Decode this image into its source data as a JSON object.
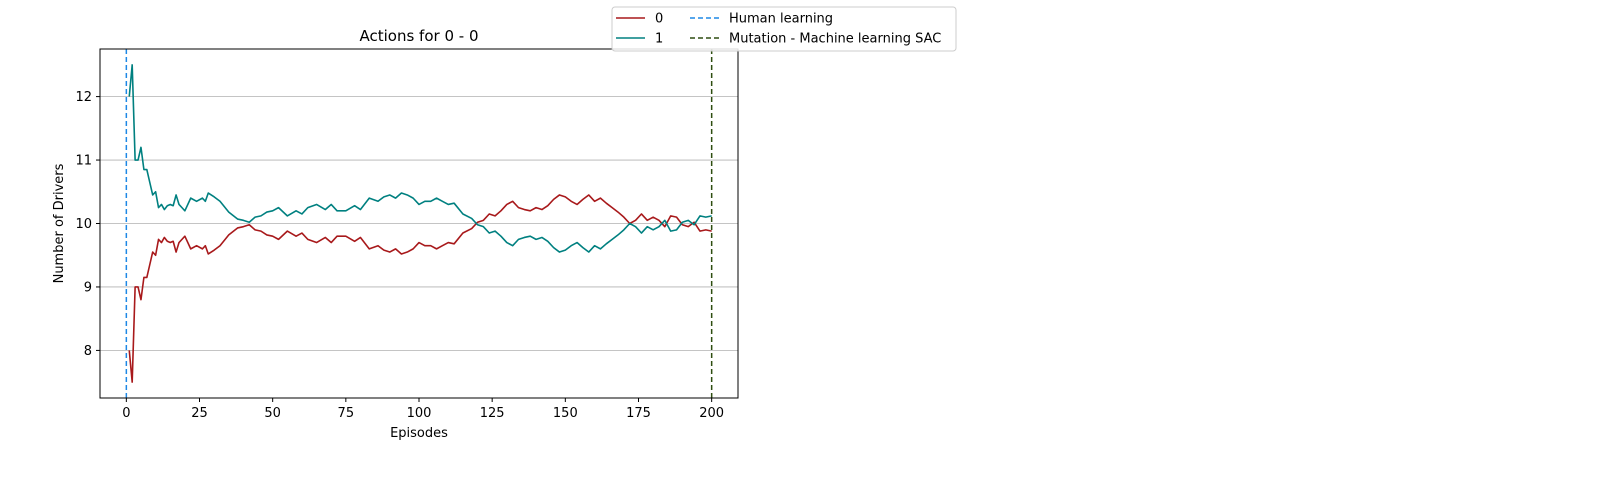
{
  "chart_data": {
    "type": "line",
    "title": "Actions for 0 - 0",
    "xlabel": "Episodes",
    "ylabel": "Number of Drivers",
    "xlim": [
      -9,
      209
    ],
    "ylim": [
      7.25,
      12.75
    ],
    "xticks": [
      0,
      25,
      50,
      75,
      100,
      125,
      150,
      175,
      200
    ],
    "yticks": [
      8,
      9,
      10,
      11,
      12
    ],
    "grid": "y-major",
    "legend_position": "top-right-outside",
    "series": [
      {
        "name": "0",
        "color": "#a8191b",
        "points": [
          [
            1,
            8.0
          ],
          [
            2,
            7.5
          ],
          [
            3,
            9.0
          ],
          [
            4,
            9.0
          ],
          [
            5,
            8.8
          ],
          [
            6,
            9.15
          ],
          [
            7,
            9.15
          ],
          [
            8,
            9.35
          ],
          [
            9,
            9.55
          ],
          [
            10,
            9.5
          ],
          [
            11,
            9.75
          ],
          [
            12,
            9.7
          ],
          [
            13,
            9.78
          ],
          [
            14,
            9.72
          ],
          [
            15,
            9.7
          ],
          [
            16,
            9.72
          ],
          [
            17,
            9.55
          ],
          [
            18,
            9.7
          ],
          [
            19,
            9.75
          ],
          [
            20,
            9.8
          ],
          [
            22,
            9.6
          ],
          [
            24,
            9.65
          ],
          [
            26,
            9.6
          ],
          [
            27,
            9.65
          ],
          [
            28,
            9.52
          ],
          [
            30,
            9.58
          ],
          [
            32,
            9.65
          ],
          [
            35,
            9.82
          ],
          [
            38,
            9.93
          ],
          [
            40,
            9.95
          ],
          [
            42,
            9.98
          ],
          [
            44,
            9.9
          ],
          [
            46,
            9.88
          ],
          [
            48,
            9.82
          ],
          [
            50,
            9.8
          ],
          [
            52,
            9.75
          ],
          [
            55,
            9.88
          ],
          [
            58,
            9.8
          ],
          [
            60,
            9.85
          ],
          [
            62,
            9.75
          ],
          [
            65,
            9.7
          ],
          [
            68,
            9.78
          ],
          [
            70,
            9.7
          ],
          [
            72,
            9.8
          ],
          [
            75,
            9.8
          ],
          [
            78,
            9.72
          ],
          [
            80,
            9.78
          ],
          [
            83,
            9.6
          ],
          [
            86,
            9.65
          ],
          [
            88,
            9.58
          ],
          [
            90,
            9.55
          ],
          [
            92,
            9.6
          ],
          [
            94,
            9.52
          ],
          [
            96,
            9.55
          ],
          [
            98,
            9.6
          ],
          [
            100,
            9.7
          ],
          [
            102,
            9.65
          ],
          [
            104,
            9.65
          ],
          [
            106,
            9.6
          ],
          [
            108,
            9.65
          ],
          [
            110,
            9.7
          ],
          [
            112,
            9.68
          ],
          [
            115,
            9.85
          ],
          [
            118,
            9.92
          ],
          [
            120,
            10.02
          ],
          [
            122,
            10.05
          ],
          [
            124,
            10.15
          ],
          [
            126,
            10.12
          ],
          [
            128,
            10.2
          ],
          [
            130,
            10.3
          ],
          [
            132,
            10.35
          ],
          [
            134,
            10.25
          ],
          [
            136,
            10.22
          ],
          [
            138,
            10.2
          ],
          [
            140,
            10.25
          ],
          [
            142,
            10.22
          ],
          [
            144,
            10.28
          ],
          [
            146,
            10.38
          ],
          [
            148,
            10.45
          ],
          [
            150,
            10.42
          ],
          [
            152,
            10.35
          ],
          [
            154,
            10.3
          ],
          [
            156,
            10.38
          ],
          [
            158,
            10.45
          ],
          [
            160,
            10.35
          ],
          [
            162,
            10.4
          ],
          [
            164,
            10.32
          ],
          [
            166,
            10.25
          ],
          [
            168,
            10.18
          ],
          [
            170,
            10.1
          ],
          [
            172,
            10.0
          ],
          [
            174,
            10.05
          ],
          [
            176,
            10.15
          ],
          [
            178,
            10.05
          ],
          [
            180,
            10.1
          ],
          [
            182,
            10.05
          ],
          [
            184,
            9.95
          ],
          [
            186,
            10.12
          ],
          [
            188,
            10.1
          ],
          [
            190,
            9.98
          ],
          [
            192,
            9.95
          ],
          [
            194,
            10.02
          ],
          [
            196,
            9.88
          ],
          [
            198,
            9.9
          ],
          [
            200,
            9.88
          ]
        ]
      },
      {
        "name": "1",
        "color": "#008080",
        "points": [
          [
            1,
            12.0
          ],
          [
            2,
            12.5
          ],
          [
            3,
            11.0
          ],
          [
            4,
            11.0
          ],
          [
            5,
            11.2
          ],
          [
            6,
            10.85
          ],
          [
            7,
            10.85
          ],
          [
            8,
            10.65
          ],
          [
            9,
            10.45
          ],
          [
            10,
            10.5
          ],
          [
            11,
            10.25
          ],
          [
            12,
            10.3
          ],
          [
            13,
            10.22
          ],
          [
            14,
            10.28
          ],
          [
            15,
            10.3
          ],
          [
            16,
            10.28
          ],
          [
            17,
            10.45
          ],
          [
            18,
            10.3
          ],
          [
            19,
            10.25
          ],
          [
            20,
            10.2
          ],
          [
            22,
            10.4
          ],
          [
            24,
            10.35
          ],
          [
            26,
            10.4
          ],
          [
            27,
            10.35
          ],
          [
            28,
            10.48
          ],
          [
            30,
            10.42
          ],
          [
            32,
            10.35
          ],
          [
            35,
            10.18
          ],
          [
            38,
            10.07
          ],
          [
            40,
            10.05
          ],
          [
            42,
            10.02
          ],
          [
            44,
            10.1
          ],
          [
            46,
            10.12
          ],
          [
            48,
            10.18
          ],
          [
            50,
            10.2
          ],
          [
            52,
            10.25
          ],
          [
            55,
            10.12
          ],
          [
            58,
            10.2
          ],
          [
            60,
            10.15
          ],
          [
            62,
            10.25
          ],
          [
            65,
            10.3
          ],
          [
            68,
            10.22
          ],
          [
            70,
            10.3
          ],
          [
            72,
            10.2
          ],
          [
            75,
            10.2
          ],
          [
            78,
            10.28
          ],
          [
            80,
            10.22
          ],
          [
            83,
            10.4
          ],
          [
            86,
            10.35
          ],
          [
            88,
            10.42
          ],
          [
            90,
            10.45
          ],
          [
            92,
            10.4
          ],
          [
            94,
            10.48
          ],
          [
            96,
            10.45
          ],
          [
            98,
            10.4
          ],
          [
            100,
            10.3
          ],
          [
            102,
            10.35
          ],
          [
            104,
            10.35
          ],
          [
            106,
            10.4
          ],
          [
            108,
            10.35
          ],
          [
            110,
            10.3
          ],
          [
            112,
            10.32
          ],
          [
            115,
            10.15
          ],
          [
            118,
            10.08
          ],
          [
            120,
            9.98
          ],
          [
            122,
            9.95
          ],
          [
            124,
            9.85
          ],
          [
            126,
            9.88
          ],
          [
            128,
            9.8
          ],
          [
            130,
            9.7
          ],
          [
            132,
            9.65
          ],
          [
            134,
            9.75
          ],
          [
            136,
            9.78
          ],
          [
            138,
            9.8
          ],
          [
            140,
            9.75
          ],
          [
            142,
            9.78
          ],
          [
            144,
            9.72
          ],
          [
            146,
            9.62
          ],
          [
            148,
            9.55
          ],
          [
            150,
            9.58
          ],
          [
            152,
            9.65
          ],
          [
            154,
            9.7
          ],
          [
            156,
            9.62
          ],
          [
            158,
            9.55
          ],
          [
            160,
            9.65
          ],
          [
            162,
            9.6
          ],
          [
            164,
            9.68
          ],
          [
            166,
            9.75
          ],
          [
            168,
            9.82
          ],
          [
            170,
            9.9
          ],
          [
            172,
            10.0
          ],
          [
            174,
            9.95
          ],
          [
            176,
            9.85
          ],
          [
            178,
            9.95
          ],
          [
            180,
            9.9
          ],
          [
            182,
            9.95
          ],
          [
            184,
            10.05
          ],
          [
            186,
            9.88
          ],
          [
            188,
            9.9
          ],
          [
            190,
            10.02
          ],
          [
            192,
            10.05
          ],
          [
            194,
            9.98
          ],
          [
            196,
            10.12
          ],
          [
            198,
            10.1
          ],
          [
            200,
            10.12
          ]
        ]
      }
    ],
    "vlines": [
      {
        "name": "Human learning",
        "x": 0,
        "color": "#1e88e5",
        "style": "dashed"
      },
      {
        "name": "Mutation - Machine learning SAC",
        "x": 200,
        "color": "#2e4d10",
        "style": "dashed"
      }
    ]
  }
}
